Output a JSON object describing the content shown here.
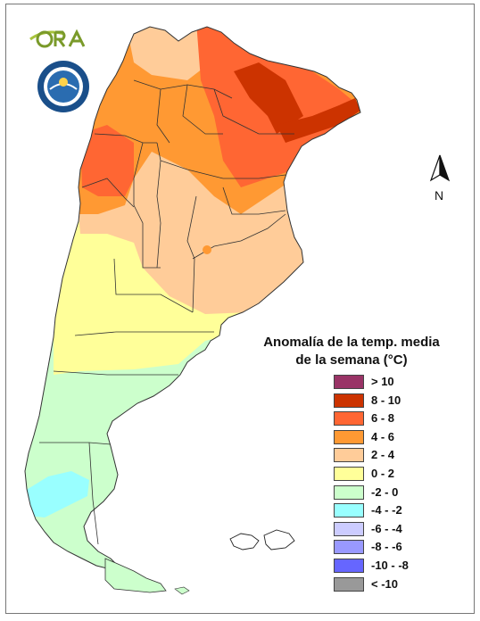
{
  "logo": {
    "text": "ORA"
  },
  "north_arrow": {
    "label": "N"
  },
  "legend": {
    "title_line1": "Anomalía de la temp. media",
    "title_line2": "de la semana (°C)",
    "items": [
      {
        "label": "> 10",
        "color": "#993366"
      },
      {
        "label": "8 - 10",
        "color": "#cc3300"
      },
      {
        "label": "6 - 8",
        "color": "#ff6633"
      },
      {
        "label": "4 - 6",
        "color": "#ff9933"
      },
      {
        "label": "2 - 4",
        "color": "#ffcc99"
      },
      {
        "label": "0 - 2",
        "color": "#ffff99"
      },
      {
        "label": "-2 - 0",
        "color": "#ccffcc"
      },
      {
        "label": "-4 - -2",
        "color": "#99ffff"
      },
      {
        "label": "-6 - -4",
        "color": "#ccccff"
      },
      {
        "label": "-8 - -6",
        "color": "#9999ff"
      },
      {
        "label": "-10 - -8",
        "color": "#6666ff"
      },
      {
        "label": "< -10",
        "color": "#999999"
      }
    ]
  },
  "colors": {
    "anomaly_8_10": "#cc3300",
    "anomaly_6_8": "#ff6633",
    "anomaly_4_6": "#ff9933",
    "anomaly_2_4": "#ffcc99",
    "anomaly_0_2": "#ffff99",
    "anomaly_m2_0": "#ccffcc",
    "anomaly_m4_m2": "#99ffff",
    "borders": "#333333"
  }
}
